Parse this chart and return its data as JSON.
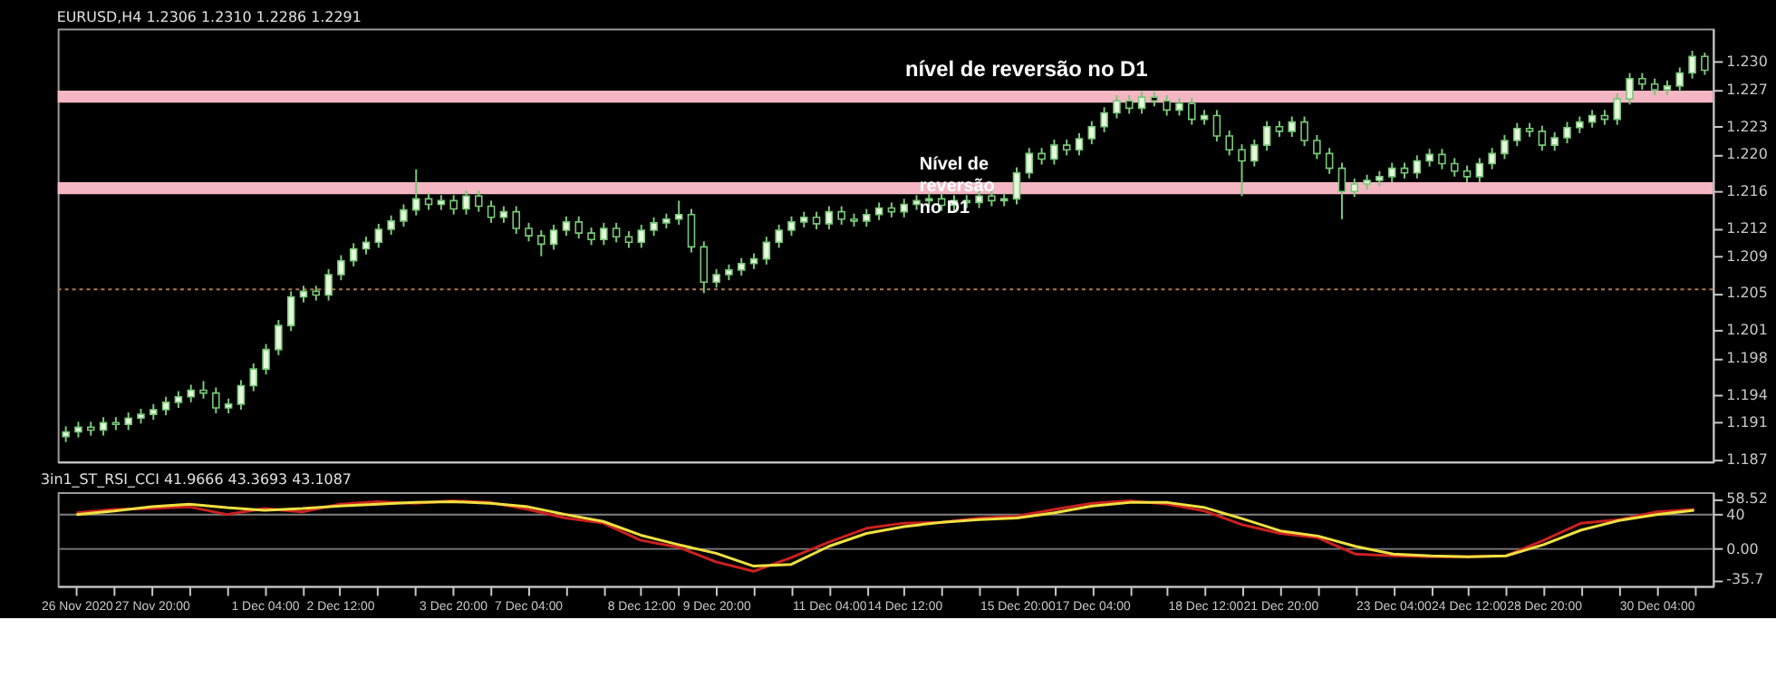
{
  "chart_data": [
    {
      "type": "candlestick",
      "title": "EURUSD,H4  1.2306 1.2310 1.2286 1.2291",
      "color": "#79c879",
      "categories": [
        null,
        null,
        null,
        null,
        null,
        null,
        null,
        null,
        null,
        null,
        null,
        null,
        null,
        null,
        null,
        null,
        null,
        null,
        null,
        null,
        null,
        null,
        null,
        null,
        null,
        null,
        null,
        null,
        null,
        null,
        null,
        null,
        null,
        null,
        null,
        null,
        null,
        null,
        null,
        null,
        null,
        null,
        null,
        null,
        null,
        null,
        null,
        null,
        null,
        null,
        null,
        null,
        null,
        null,
        null,
        null,
        null,
        null,
        null,
        null,
        null,
        null,
        null,
        null,
        null,
        null,
        null,
        null,
        null,
        null,
        null,
        null,
        null,
        null,
        null,
        null,
        null,
        null,
        null,
        null,
        null,
        null,
        null,
        null,
        null,
        null,
        null,
        null,
        null,
        null,
        null,
        null,
        null,
        null,
        null,
        null,
        null,
        null,
        null,
        null,
        null,
        null,
        null,
        null,
        null,
        null,
        null,
        null,
        null,
        null,
        null,
        null,
        null,
        null,
        null,
        null,
        null,
        null,
        null,
        null,
        null,
        null,
        null,
        null,
        null,
        null,
        null,
        null,
        null,
        null,
        null,
        null
      ],
      "ohlc": [
        [
          1.1895,
          1.1906,
          1.1889,
          1.19
        ],
        [
          1.19,
          1.1911,
          1.1894,
          1.1905
        ],
        [
          1.1905,
          1.1911,
          1.1896,
          1.1902
        ],
        [
          1.1902,
          1.1916,
          1.1896,
          1.191
        ],
        [
          1.191,
          1.1916,
          1.1902,
          1.1908
        ],
        [
          1.1908,
          1.1921,
          1.1902,
          1.1915
        ],
        [
          1.1915,
          1.1925,
          1.1909,
          1.1919
        ],
        [
          1.1919,
          1.193,
          1.1913,
          1.1924
        ],
        [
          1.1924,
          1.1938,
          1.1918,
          1.1932
        ],
        [
          1.1932,
          1.1944,
          1.1926,
          1.1938
        ],
        [
          1.1938,
          1.1951,
          1.1932,
          1.1945
        ],
        [
          1.1945,
          1.1955,
          1.1936,
          1.1942
        ],
        [
          1.1942,
          1.1948,
          1.192,
          1.1926
        ],
        [
          1.1926,
          1.1936,
          1.192,
          1.193
        ],
        [
          1.193,
          1.1956,
          1.1924,
          1.195
        ],
        [
          1.195,
          1.1974,
          1.1944,
          1.1968
        ],
        [
          1.1968,
          1.1995,
          1.1962,
          1.1989
        ],
        [
          1.1989,
          1.2021,
          1.1983,
          1.2015
        ],
        [
          1.2015,
          1.2052,
          1.2009,
          1.2046
        ],
        [
          1.2046,
          1.2058,
          1.204,
          1.2052
        ],
        [
          1.2052,
          1.2058,
          1.2042,
          1.2048
        ],
        [
          1.2048,
          1.2076,
          1.2042,
          1.207
        ],
        [
          1.207,
          1.2091,
          1.2064,
          1.2085
        ],
        [
          1.2085,
          1.2104,
          1.2079,
          1.2098
        ],
        [
          1.2098,
          1.2111,
          1.2092,
          1.2105
        ],
        [
          1.2105,
          1.2125,
          1.2099,
          1.2119
        ],
        [
          1.2119,
          1.2134,
          1.2113,
          1.2128
        ],
        [
          1.2128,
          1.2146,
          1.2122,
          1.214
        ],
        [
          1.214,
          1.2184,
          1.2134,
          1.2152
        ],
        [
          1.2152,
          1.2158,
          1.214,
          1.2146
        ],
        [
          1.2146,
          1.2156,
          1.214,
          1.215
        ],
        [
          1.215,
          1.2156,
          1.2135,
          1.2141
        ],
        [
          1.2141,
          1.2161,
          1.2135,
          1.2155
        ],
        [
          1.2155,
          1.2161,
          1.2138,
          1.2144
        ],
        [
          1.2144,
          1.215,
          1.2126,
          1.2132
        ],
        [
          1.2132,
          1.2144,
          1.2126,
          1.2138
        ],
        [
          1.2138,
          1.2144,
          1.2114,
          1.212
        ],
        [
          1.212,
          1.2126,
          1.2106,
          1.2112
        ],
        [
          1.2112,
          1.2118,
          1.209,
          1.2103
        ],
        [
          1.2103,
          1.2124,
          1.2097,
          1.2118
        ],
        [
          1.2118,
          1.2133,
          1.2112,
          1.2127
        ],
        [
          1.2127,
          1.2133,
          1.2109,
          1.2115
        ],
        [
          1.2115,
          1.2121,
          1.2102,
          1.2108
        ],
        [
          1.2108,
          1.2126,
          1.2102,
          1.212
        ],
        [
          1.212,
          1.2126,
          1.2105,
          1.2111
        ],
        [
          1.2111,
          1.2117,
          1.2099,
          1.2105
        ],
        [
          1.2105,
          1.2124,
          1.2099,
          1.2118
        ],
        [
          1.2118,
          1.2132,
          1.2112,
          1.2126
        ],
        [
          1.2126,
          1.2136,
          1.212,
          1.213
        ],
        [
          1.213,
          1.215,
          1.2124,
          1.2135
        ],
        [
          1.2135,
          1.2141,
          1.2094,
          1.21
        ],
        [
          1.21,
          1.2106,
          1.205,
          1.2062
        ],
        [
          1.2062,
          1.2076,
          1.2056,
          1.207
        ],
        [
          1.207,
          1.2081,
          1.2064,
          1.2075
        ],
        [
          1.2075,
          1.2088,
          1.2069,
          1.2082
        ],
        [
          1.2082,
          1.2093,
          1.2076,
          1.2087
        ],
        [
          1.2087,
          1.2111,
          1.2081,
          1.2105
        ],
        [
          1.2105,
          1.2124,
          1.2099,
          1.2118
        ],
        [
          1.2118,
          1.2133,
          1.2112,
          1.2127
        ],
        [
          1.2127,
          1.2138,
          1.2121,
          1.2132
        ],
        [
          1.2132,
          1.2138,
          1.2119,
          1.2125
        ],
        [
          1.2125,
          1.2144,
          1.2119,
          1.2138
        ],
        [
          1.2138,
          1.2144,
          1.2124,
          1.213
        ],
        [
          1.213,
          1.2136,
          1.2122,
          1.2128
        ],
        [
          1.2128,
          1.2141,
          1.2122,
          1.2135
        ],
        [
          1.2135,
          1.2148,
          1.2129,
          1.2142
        ],
        [
          1.2142,
          1.2148,
          1.2132,
          1.2138
        ],
        [
          1.2138,
          1.2152,
          1.2132,
          1.2146
        ],
        [
          1.2146,
          1.2156,
          1.214,
          1.215
        ],
        [
          1.215,
          1.2158,
          1.2144,
          1.2152
        ],
        [
          1.2152,
          1.2158,
          1.2139,
          1.2145
        ],
        [
          1.2145,
          1.2156,
          1.2139,
          1.215
        ],
        [
          1.215,
          1.2156,
          1.2142,
          1.2148
        ],
        [
          1.2148,
          1.2161,
          1.2142,
          1.2155
        ],
        [
          1.2155,
          1.2161,
          1.2144,
          1.215
        ],
        [
          1.215,
          1.2158,
          1.2144,
          1.2152
        ],
        [
          1.2152,
          1.2186,
          1.2146,
          1.218
        ],
        [
          1.218,
          1.2207,
          1.2174,
          1.2201
        ],
        [
          1.2201,
          1.2207,
          1.2189,
          1.2195
        ],
        [
          1.2195,
          1.2216,
          1.2189,
          1.221
        ],
        [
          1.221,
          1.2216,
          1.2199,
          1.2205
        ],
        [
          1.2205,
          1.2223,
          1.2199,
          1.2217
        ],
        [
          1.2217,
          1.2236,
          1.2211,
          1.223
        ],
        [
          1.223,
          1.2251,
          1.2224,
          1.2245
        ],
        [
          1.2245,
          1.2264,
          1.2239,
          1.2258
        ],
        [
          1.2258,
          1.2264,
          1.2244,
          1.225
        ],
        [
          1.225,
          1.2268,
          1.2244,
          1.2262
        ],
        [
          1.2262,
          1.2268,
          1.2252,
          1.2258
        ],
        [
          1.2258,
          1.2264,
          1.2242,
          1.2248
        ],
        [
          1.2248,
          1.2261,
          1.2242,
          1.2255
        ],
        [
          1.2255,
          1.2261,
          1.2232,
          1.2238
        ],
        [
          1.2238,
          1.2248,
          1.2232,
          1.2242
        ],
        [
          1.2242,
          1.2248,
          1.2214,
          1.222
        ],
        [
          1.222,
          1.2226,
          1.2199,
          1.2205
        ],
        [
          1.2205,
          1.2211,
          1.2155,
          1.2193
        ],
        [
          1.2193,
          1.2216,
          1.2187,
          1.221
        ],
        [
          1.221,
          1.2236,
          1.2204,
          1.223
        ],
        [
          1.223,
          1.2236,
          1.2219,
          1.2225
        ],
        [
          1.2225,
          1.2241,
          1.2219,
          1.2235
        ],
        [
          1.2235,
          1.2241,
          1.2209,
          1.2215
        ],
        [
          1.2215,
          1.2221,
          1.2195,
          1.2201
        ],
        [
          1.2201,
          1.2207,
          1.2179,
          1.2185
        ],
        [
          1.2185,
          1.2191,
          1.213,
          1.216
        ],
        [
          1.216,
          1.2174,
          1.2154,
          1.2168
        ],
        [
          1.2168,
          1.2178,
          1.2162,
          1.2172
        ],
        [
          1.2172,
          1.2182,
          1.2166,
          1.2176
        ],
        [
          1.2176,
          1.2191,
          1.217,
          1.2185
        ],
        [
          1.2185,
          1.2191,
          1.2174,
          1.218
        ],
        [
          1.218,
          1.2199,
          1.2174,
          1.2193
        ],
        [
          1.2193,
          1.2206,
          1.2187,
          1.22
        ],
        [
          1.22,
          1.2206,
          1.2184,
          1.219
        ],
        [
          1.219,
          1.2196,
          1.2176,
          1.2182
        ],
        [
          1.2182,
          1.2188,
          1.217,
          1.2176
        ],
        [
          1.2176,
          1.2196,
          1.217,
          1.219
        ],
        [
          1.219,
          1.2207,
          1.2184,
          1.2201
        ],
        [
          1.2201,
          1.2221,
          1.2195,
          1.2215
        ],
        [
          1.2215,
          1.2234,
          1.2209,
          1.2228
        ],
        [
          1.2228,
          1.2234,
          1.2219,
          1.2225
        ],
        [
          1.2225,
          1.2231,
          1.2204,
          1.221
        ],
        [
          1.221,
          1.2224,
          1.2204,
          1.2218
        ],
        [
          1.2218,
          1.2235,
          1.2212,
          1.2229
        ],
        [
          1.2229,
          1.2241,
          1.2223,
          1.2235
        ],
        [
          1.2235,
          1.2248,
          1.2229,
          1.2242
        ],
        [
          1.2242,
          1.2248,
          1.2232,
          1.2238
        ],
        [
          1.2238,
          1.2266,
          1.2232,
          1.226
        ],
        [
          1.226,
          1.2288,
          1.2254,
          1.2282
        ],
        [
          1.2282,
          1.2288,
          1.227,
          1.2276
        ],
        [
          1.2276,
          1.2282,
          1.2264,
          1.227
        ],
        [
          1.227,
          1.228,
          1.2264,
          1.2274
        ],
        [
          1.2274,
          1.2294,
          1.2268,
          1.2288
        ],
        [
          1.2288,
          1.2312,
          1.2282,
          1.2306
        ],
        [
          1.2306,
          1.231,
          1.2286,
          1.2291
        ]
      ],
      "ylim": [
        1.1868,
        1.2336
      ],
      "yticks": [
        1.187,
        1.191,
        1.194,
        1.198,
        1.201,
        1.205,
        1.209,
        1.212,
        1.216,
        {
          "value": 1.22,
          "label": "1.220"
        },
        1.223,
        1.227,
        {
          "value": 1.23,
          "label": "1.230"
        }
      ],
      "tick_labels": "y",
      "bands": [
        {
          "axis": "y",
          "from": 1.2256,
          "to": 1.2269,
          "label": "nível de reversão no D1",
          "color": "#f4b6c2"
        },
        {
          "axis": "y",
          "from": 1.2157,
          "to": 1.217,
          "label": "Nível de reversão no D1",
          "color": "#f4b6c2"
        }
      ],
      "ref_lines": [
        {
          "axis": "y",
          "value": 1.2054,
          "color": "#b07850",
          "line_style": "dotted"
        }
      ]
    },
    {
      "type": "line",
      "title": "3in1_ST_RSI_CCI 41.9666 43.3693 43.1087",
      "categories": [
        "26 Nov 2020",
        null,
        "27 Nov 20:00",
        null,
        null,
        "1 Dec 04:00",
        null,
        "2 Dec 12:00",
        null,
        null,
        "3 Dec 20:00",
        null,
        "7 Dec 04:00",
        null,
        null,
        "8 Dec 12:00",
        null,
        "9 Dec 20:00",
        null,
        null,
        "11 Dec 04:00",
        null,
        "14 Dec 12:00",
        null,
        null,
        "15 Dec 20:00",
        null,
        "17 Dec 04:00",
        null,
        null,
        "18 Dec 12:00",
        null,
        "21 Dec 20:00",
        null,
        null,
        "23 Dec 04:00",
        null,
        "24 Dec 12:00",
        null,
        "28 Dec 20:00",
        null,
        null,
        "30 Dec 04:00",
        null
      ],
      "series": [
        {
          "color": "#cc2020",
          "values": [
            42,
            46,
            47,
            49,
            40,
            47,
            43,
            52,
            55,
            53,
            56,
            54,
            46,
            36,
            30,
            10,
            2,
            -15,
            -26,
            -10,
            8,
            24,
            30,
            31,
            36,
            38,
            46,
            53,
            56,
            52,
            44,
            28,
            18,
            13,
            -6,
            -8,
            -9,
            -9,
            -8,
            10,
            30,
            34,
            43,
            46
          ]
        },
        {
          "color": "#f0e040",
          "values": [
            40,
            44,
            49,
            52,
            48,
            45,
            47,
            50,
            52,
            54,
            55,
            53,
            49,
            40,
            32,
            16,
            5,
            -5,
            -20,
            -18,
            3,
            18,
            26,
            31,
            34,
            36,
            42,
            50,
            54,
            54,
            48,
            35,
            21,
            15,
            3,
            -6,
            -8,
            -9,
            -8,
            5,
            22,
            33,
            40,
            45
          ]
        }
      ],
      "ylim": [
        -43,
        66
      ],
      "yticks": [
        {
          "value": -35.7,
          "label": "-35.7"
        },
        {
          "value": 0,
          "label": "0.00"
        },
        40,
        58.52
      ],
      "ref_lines": [
        {
          "axis": "y",
          "value": 40,
          "color": "#808080"
        },
        {
          "axis": "y",
          "value": 0,
          "color": "#808080"
        }
      ]
    }
  ]
}
